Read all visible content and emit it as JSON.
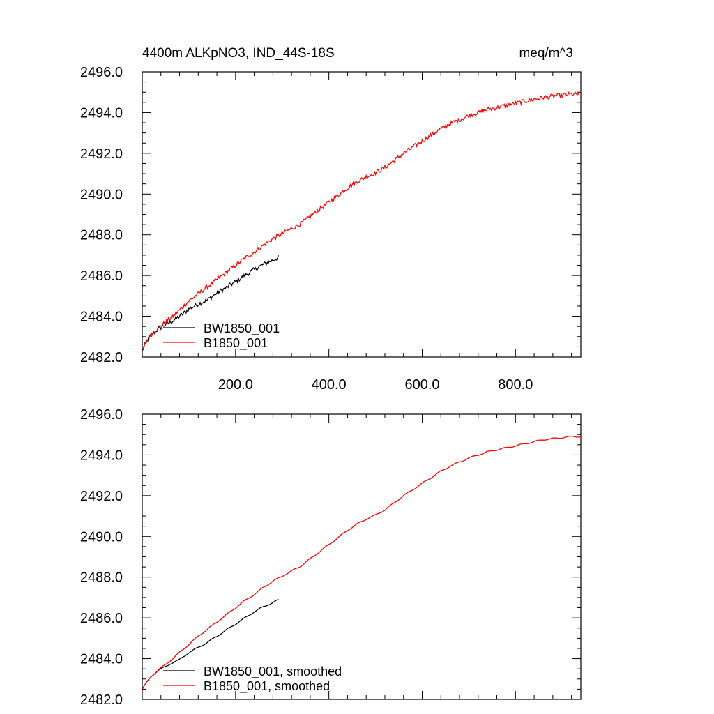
{
  "chart_data": [
    {
      "type": "line",
      "title": "4400m ALKpNO3, IND_44S-18S",
      "units": "meq/m^3",
      "xlim": [
        0,
        940
      ],
      "ylim": [
        2482.0,
        2496.0
      ],
      "xticks": [
        200,
        400,
        600,
        800
      ],
      "xtick_labels": [
        "200.0",
        "400.0",
        "600.0",
        "800.0"
      ],
      "yticks": [
        2482,
        2484,
        2486,
        2488,
        2490,
        2492,
        2494,
        2496
      ],
      "ytick_labels": [
        "2482.0",
        "2484.0",
        "2486.0",
        "2488.0",
        "2490.0",
        "2492.0",
        "2494.0",
        "2496.0"
      ],
      "legend_position": "bottom-left",
      "series": [
        {
          "name": "BW1850_001",
          "color": "#000000",
          "noisy": true,
          "x": [
            0,
            10,
            20,
            30,
            40,
            50,
            60,
            80,
            100,
            120,
            140,
            160,
            180,
            200,
            220,
            240,
            260,
            280,
            293
          ],
          "y": [
            2482.3,
            2482.8,
            2483.1,
            2483.3,
            2483.45,
            2483.6,
            2483.7,
            2484.0,
            2484.35,
            2484.6,
            2484.8,
            2485.15,
            2485.4,
            2485.7,
            2486.0,
            2486.3,
            2486.55,
            2486.75,
            2486.9
          ]
        },
        {
          "name": "B1850_001",
          "color": "#ff0000",
          "noisy": true,
          "x": [
            0,
            10,
            20,
            30,
            40,
            50,
            60,
            80,
            100,
            120,
            140,
            160,
            180,
            200,
            220,
            240,
            260,
            280,
            300,
            320,
            340,
            360,
            380,
            400,
            420,
            440,
            460,
            480,
            500,
            520,
            540,
            560,
            580,
            600,
            620,
            640,
            660,
            680,
            700,
            720,
            740,
            760,
            780,
            800,
            820,
            840,
            860,
            880,
            900,
            920,
            940
          ],
          "y": [
            2482.3,
            2482.8,
            2483.1,
            2483.35,
            2483.55,
            2483.7,
            2483.9,
            2484.3,
            2484.75,
            2485.1,
            2485.45,
            2485.8,
            2486.15,
            2486.5,
            2486.85,
            2487.15,
            2487.5,
            2487.8,
            2488.05,
            2488.3,
            2488.55,
            2488.9,
            2489.25,
            2489.6,
            2489.95,
            2490.3,
            2490.6,
            2490.85,
            2491.05,
            2491.3,
            2491.65,
            2492.0,
            2492.3,
            2492.6,
            2492.9,
            2493.2,
            2493.45,
            2493.65,
            2493.85,
            2494.0,
            2494.15,
            2494.25,
            2494.35,
            2494.45,
            2494.55,
            2494.65,
            2494.75,
            2494.8,
            2494.85,
            2494.9,
            2494.9
          ]
        }
      ]
    },
    {
      "type": "line",
      "title": "",
      "units": "",
      "xlim": [
        0,
        940
      ],
      "ylim": [
        2482.0,
        2496.0
      ],
      "xticks": [
        200,
        400,
        600,
        800
      ],
      "xtick_labels": [],
      "yticks": [
        2482,
        2484,
        2486,
        2488,
        2490,
        2492,
        2494,
        2496
      ],
      "ytick_labels": [
        "2482.0",
        "2484.0",
        "2486.0",
        "2488.0",
        "2490.0",
        "2492.0",
        "2494.0",
        "2496.0"
      ],
      "legend_position": "bottom-left",
      "series": [
        {
          "name": "BW1850_001, smoothed",
          "color": "#000000",
          "noisy": false,
          "x": [
            0,
            10,
            20,
            30,
            40,
            50,
            60,
            80,
            100,
            120,
            140,
            160,
            180,
            200,
            220,
            240,
            260,
            280,
            293
          ],
          "y": [
            2482.5,
            2482.85,
            2483.15,
            2483.35,
            2483.5,
            2483.6,
            2483.75,
            2483.95,
            2484.3,
            2484.55,
            2484.8,
            2485.1,
            2485.4,
            2485.7,
            2486.0,
            2486.3,
            2486.55,
            2486.75,
            2486.9
          ]
        },
        {
          "name": "B1850_001, smoothed",
          "color": "#ff0000",
          "noisy": false,
          "x": [
            0,
            10,
            20,
            30,
            40,
            50,
            60,
            80,
            100,
            120,
            140,
            160,
            180,
            200,
            220,
            240,
            260,
            280,
            300,
            320,
            340,
            360,
            380,
            400,
            420,
            440,
            460,
            480,
            500,
            520,
            540,
            560,
            580,
            600,
            620,
            640,
            660,
            680,
            700,
            720,
            740,
            760,
            780,
            800,
            820,
            840,
            860,
            880,
            900,
            920,
            940
          ],
          "y": [
            2482.5,
            2482.85,
            2483.15,
            2483.35,
            2483.55,
            2483.7,
            2483.9,
            2484.3,
            2484.7,
            2485.1,
            2485.45,
            2485.8,
            2486.15,
            2486.5,
            2486.85,
            2487.15,
            2487.5,
            2487.8,
            2488.05,
            2488.3,
            2488.55,
            2488.9,
            2489.25,
            2489.6,
            2489.95,
            2490.3,
            2490.6,
            2490.85,
            2491.05,
            2491.3,
            2491.65,
            2492.0,
            2492.3,
            2492.6,
            2492.9,
            2493.2,
            2493.45,
            2493.65,
            2493.85,
            2494.0,
            2494.15,
            2494.25,
            2494.35,
            2494.45,
            2494.55,
            2494.65,
            2494.75,
            2494.8,
            2494.85,
            2494.9,
            2494.9
          ]
        }
      ]
    }
  ]
}
